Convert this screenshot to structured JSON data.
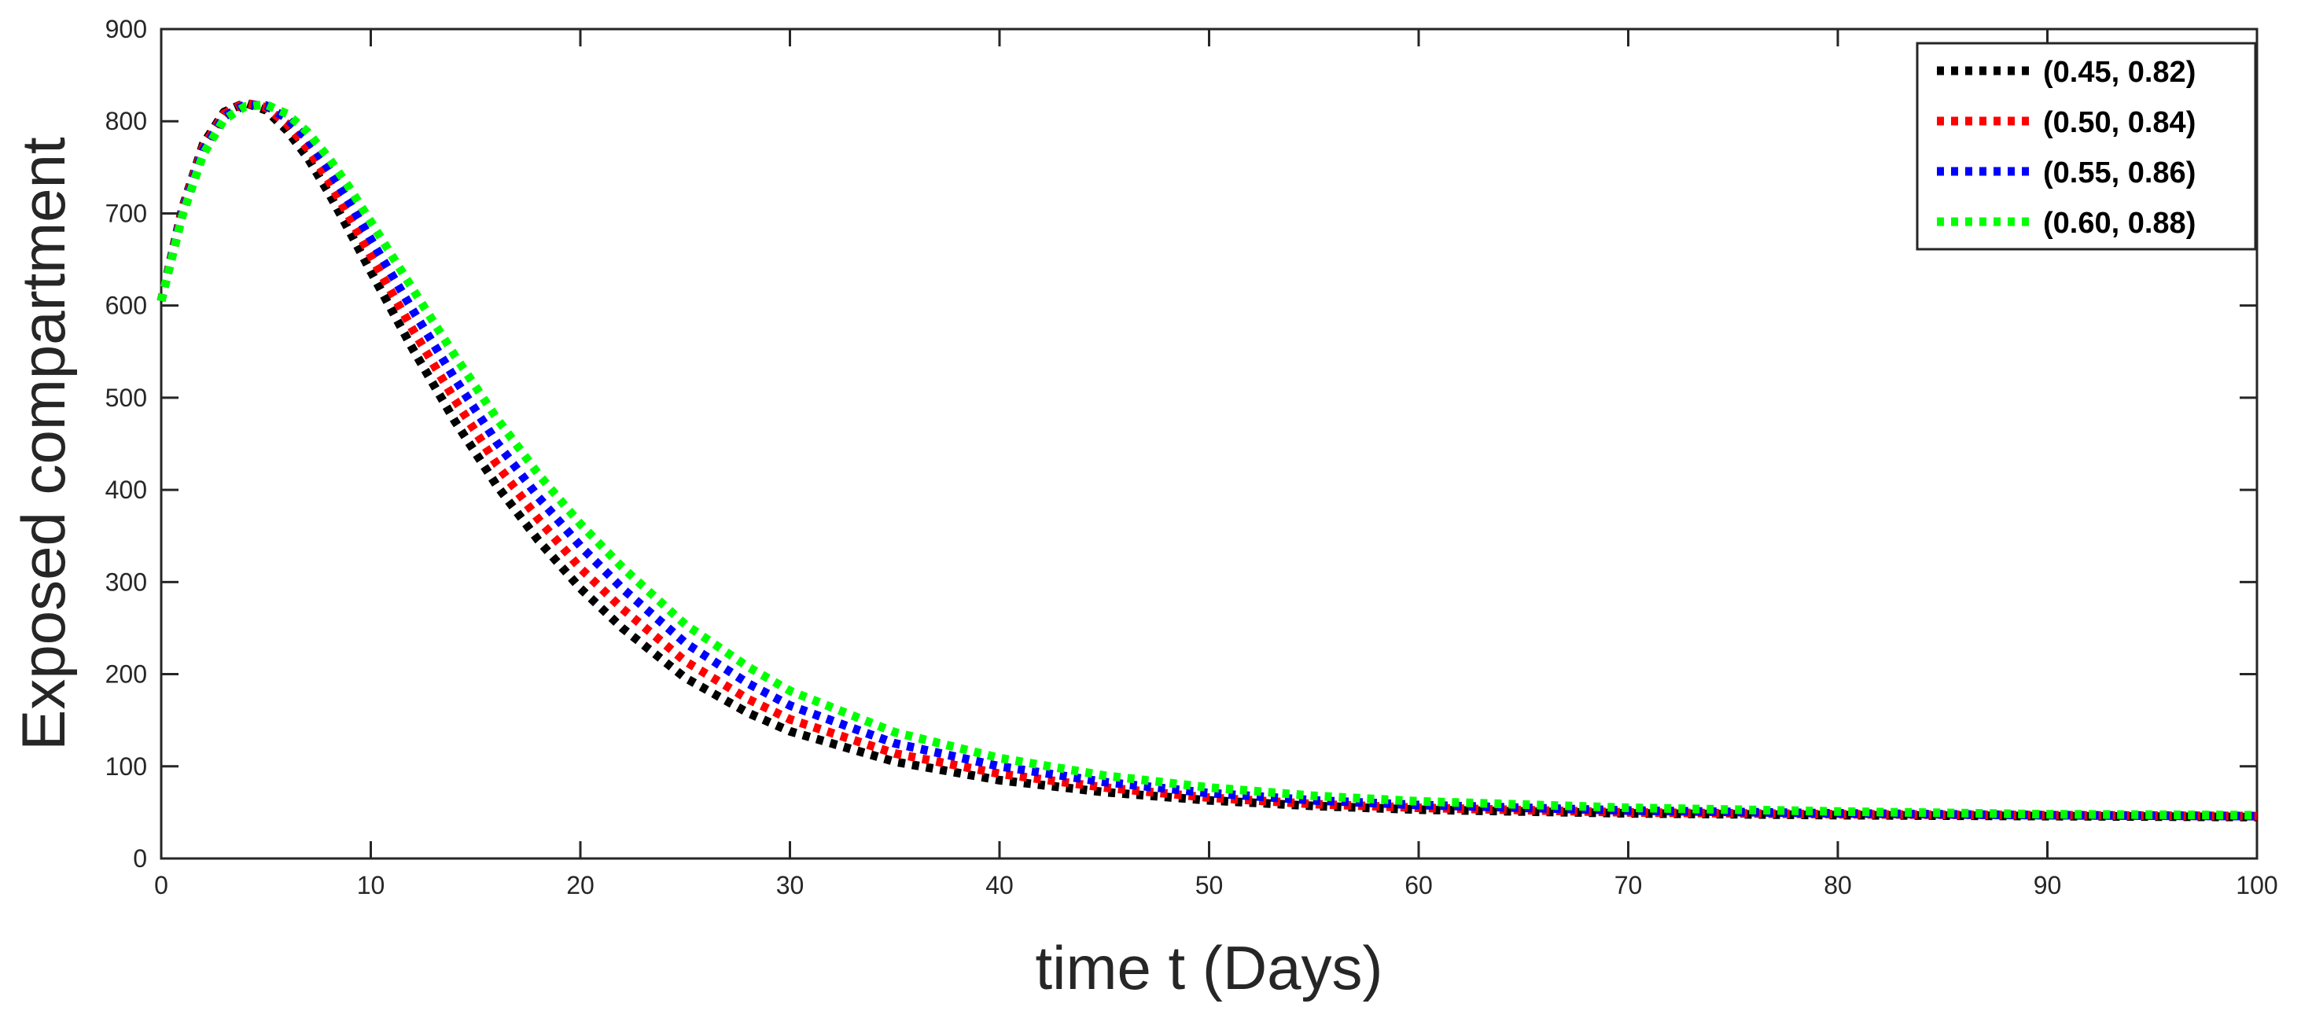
{
  "chart_data": {
    "type": "line",
    "title": "",
    "xlabel": "time t (Days)",
    "ylabel": "Exposed compartment",
    "xlim": [
      0,
      100
    ],
    "ylim": [
      0,
      900
    ],
    "xticks": [
      0,
      10,
      20,
      30,
      40,
      50,
      60,
      70,
      80,
      90,
      100
    ],
    "yticks": [
      0,
      100,
      200,
      300,
      400,
      500,
      600,
      700,
      800,
      900
    ],
    "grid": false,
    "legend_position": "top-right",
    "line_style": "dotted",
    "x": [
      0,
      1,
      2,
      3,
      4,
      5,
      6,
      7,
      8,
      9,
      10,
      12,
      14,
      16,
      18,
      20,
      22,
      25,
      28,
      30,
      35,
      40,
      45,
      50,
      55,
      60,
      70,
      80,
      90,
      100
    ],
    "series": [
      {
        "name": "(0.45, 0.82)",
        "color": "#000000",
        "values": [
          605,
          705,
          775,
          810,
          820,
          812,
          790,
          760,
          722,
          680,
          637,
          553,
          475,
          405,
          345,
          293,
          250,
          196,
          158,
          138,
          105,
          85,
          72,
          63,
          57,
          53,
          49,
          47,
          46,
          45
        ]
      },
      {
        "name": "(0.50, 0.84)",
        "color": "#ff0000",
        "values": [
          605,
          703,
          772,
          808,
          820,
          815,
          797,
          770,
          735,
          695,
          654,
          574,
          498,
          428,
          368,
          315,
          271,
          214,
          173,
          151,
          114,
          92,
          77,
          66,
          59,
          55,
          50,
          48,
          47,
          46
        ]
      },
      {
        "name": "(0.55, 0.86)",
        "color": "#0000ff",
        "values": [
          605,
          700,
          768,
          805,
          818,
          817,
          803,
          780,
          748,
          711,
          672,
          595,
          521,
          452,
          392,
          339,
          293,
          234,
          190,
          166,
          125,
          100,
          83,
          71,
          63,
          58,
          52,
          49,
          47,
          46
        ]
      },
      {
        "name": "(0.60, 0.88)",
        "color": "#00ff00",
        "values": [
          605,
          697,
          764,
          802,
          816,
          818,
          808,
          788,
          760,
          727,
          691,
          618,
          546,
          478,
          417,
          363,
          316,
          254,
          208,
          182,
          137,
          109,
          90,
          77,
          68,
          62,
          55,
          51,
          48,
          47
        ]
      }
    ]
  }
}
